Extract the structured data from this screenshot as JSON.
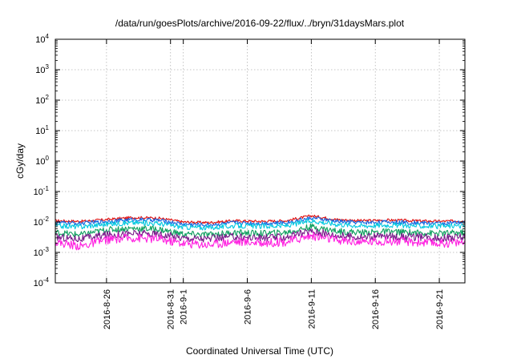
{
  "chart_data": {
    "type": "line",
    "title": "/data/run/goesPlots/archive/2016-09-22/flux/../bryn/31daysMars.plot",
    "xlabel": "Coordinated Universal Time (UTC)",
    "ylabel": "cGy/day",
    "yscale": "log",
    "ylim": [
      0.0001,
      10000
    ],
    "y_ticks": [
      {
        "base": "10",
        "exp": "-4",
        "value": 0.0001
      },
      {
        "base": "10",
        "exp": "-3",
        "value": 0.001
      },
      {
        "base": "10",
        "exp": "-2",
        "value": 0.01
      },
      {
        "base": "10",
        "exp": "-1",
        "value": 0.1
      },
      {
        "base": "10",
        "exp": "0",
        "value": 1
      },
      {
        "base": "10",
        "exp": "1",
        "value": 10
      },
      {
        "base": "10",
        "exp": "2",
        "value": 100
      },
      {
        "base": "10",
        "exp": "3",
        "value": 1000
      },
      {
        "base": "10",
        "exp": "4",
        "value": 10000
      }
    ],
    "xlim": [
      "2016-08-22",
      "2016-09-23"
    ],
    "x_ticks": [
      {
        "label": "2016-8-26",
        "date": "2016-08-26"
      },
      {
        "label": "2016-8-31",
        "date": "2016-08-31"
      },
      {
        "label": "2016-9-1",
        "date": "2016-09-01"
      },
      {
        "label": "2016-9-6",
        "date": "2016-09-06"
      },
      {
        "label": "2016-9-11",
        "date": "2016-09-11"
      },
      {
        "label": "2016-9-16",
        "date": "2016-09-16"
      },
      {
        "label": "2016-9-21",
        "date": "2016-09-21"
      }
    ],
    "grid": true,
    "series": [
      {
        "color": "#e01010",
        "x": [
          "2016-08-22",
          "2016-08-24",
          "2016-08-26",
          "2016-08-28",
          "2016-08-30",
          "2016-09-01",
          "2016-09-03",
          "2016-09-05",
          "2016-09-07",
          "2016-09-09",
          "2016-09-11",
          "2016-09-13",
          "2016-09-15",
          "2016-09-17",
          "2016-09-19",
          "2016-09-21",
          "2016-09-23"
        ],
        "y": [
          0.011,
          0.0105,
          0.012,
          0.014,
          0.0135,
          0.01,
          0.0095,
          0.011,
          0.0105,
          0.011,
          0.016,
          0.012,
          0.011,
          0.0115,
          0.011,
          0.0105,
          0.011
        ]
      },
      {
        "color": "#1565e0",
        "x": [
          "2016-08-22",
          "2016-08-24",
          "2016-08-26",
          "2016-08-28",
          "2016-08-30",
          "2016-09-01",
          "2016-09-03",
          "2016-09-05",
          "2016-09-07",
          "2016-09-09",
          "2016-09-11",
          "2016-09-13",
          "2016-09-15",
          "2016-09-17",
          "2016-09-19",
          "2016-09-21",
          "2016-09-23"
        ],
        "y": [
          0.0095,
          0.009,
          0.0105,
          0.012,
          0.0115,
          0.0085,
          0.008,
          0.0095,
          0.009,
          0.0095,
          0.0135,
          0.0105,
          0.0095,
          0.01,
          0.0095,
          0.009,
          0.0095
        ]
      },
      {
        "color": "#00c8e0",
        "x": [
          "2016-08-22",
          "2016-08-24",
          "2016-08-26",
          "2016-08-28",
          "2016-08-30",
          "2016-09-01",
          "2016-09-03",
          "2016-09-05",
          "2016-09-07",
          "2016-09-09",
          "2016-09-11",
          "2016-09-13",
          "2016-09-15",
          "2016-09-17",
          "2016-09-19",
          "2016-09-21",
          "2016-09-23"
        ],
        "y": [
          0.0075,
          0.007,
          0.0085,
          0.0095,
          0.009,
          0.0068,
          0.0065,
          0.0075,
          0.0072,
          0.0075,
          0.011,
          0.0085,
          0.0075,
          0.008,
          0.0075,
          0.0072,
          0.0075
        ]
      },
      {
        "color": "#10a060",
        "x": [
          "2016-08-22",
          "2016-08-24",
          "2016-08-26",
          "2016-08-28",
          "2016-08-30",
          "2016-09-01",
          "2016-09-03",
          "2016-09-05",
          "2016-09-07",
          "2016-09-09",
          "2016-09-11",
          "2016-09-13",
          "2016-09-15",
          "2016-09-17",
          "2016-09-19",
          "2016-09-21",
          "2016-09-23"
        ],
        "y": [
          0.0045,
          0.0038,
          0.0055,
          0.0062,
          0.0058,
          0.004,
          0.0038,
          0.0045,
          0.0042,
          0.0045,
          0.007,
          0.005,
          0.0045,
          0.0048,
          0.0045,
          0.0042,
          0.0045
        ]
      },
      {
        "color": "#7a1a8a",
        "x": [
          "2016-08-22",
          "2016-08-24",
          "2016-08-26",
          "2016-08-28",
          "2016-08-30",
          "2016-09-01",
          "2016-09-03",
          "2016-09-05",
          "2016-09-07",
          "2016-09-09",
          "2016-09-11",
          "2016-09-13",
          "2016-09-15",
          "2016-09-17",
          "2016-09-19",
          "2016-09-21",
          "2016-09-23"
        ],
        "y": [
          0.0032,
          0.0028,
          0.0038,
          0.0042,
          0.004,
          0.003,
          0.0028,
          0.0033,
          0.003,
          0.0032,
          0.005,
          0.0036,
          0.0032,
          0.0034,
          0.0032,
          0.003,
          0.0032
        ]
      },
      {
        "color": "#ff20e0",
        "x": [
          "2016-08-22",
          "2016-08-24",
          "2016-08-26",
          "2016-08-28",
          "2016-08-30",
          "2016-09-01",
          "2016-09-03",
          "2016-09-05",
          "2016-09-07",
          "2016-09-09",
          "2016-09-11",
          "2016-09-13",
          "2016-09-15",
          "2016-09-17",
          "2016-09-19",
          "2016-09-21",
          "2016-09-23"
        ],
        "y": [
          0.0022,
          0.0016,
          0.0026,
          0.003,
          0.0028,
          0.002,
          0.0018,
          0.0023,
          0.0021,
          0.0022,
          0.0036,
          0.0025,
          0.0022,
          0.0024,
          0.0022,
          0.002,
          0.0022
        ]
      }
    ]
  }
}
